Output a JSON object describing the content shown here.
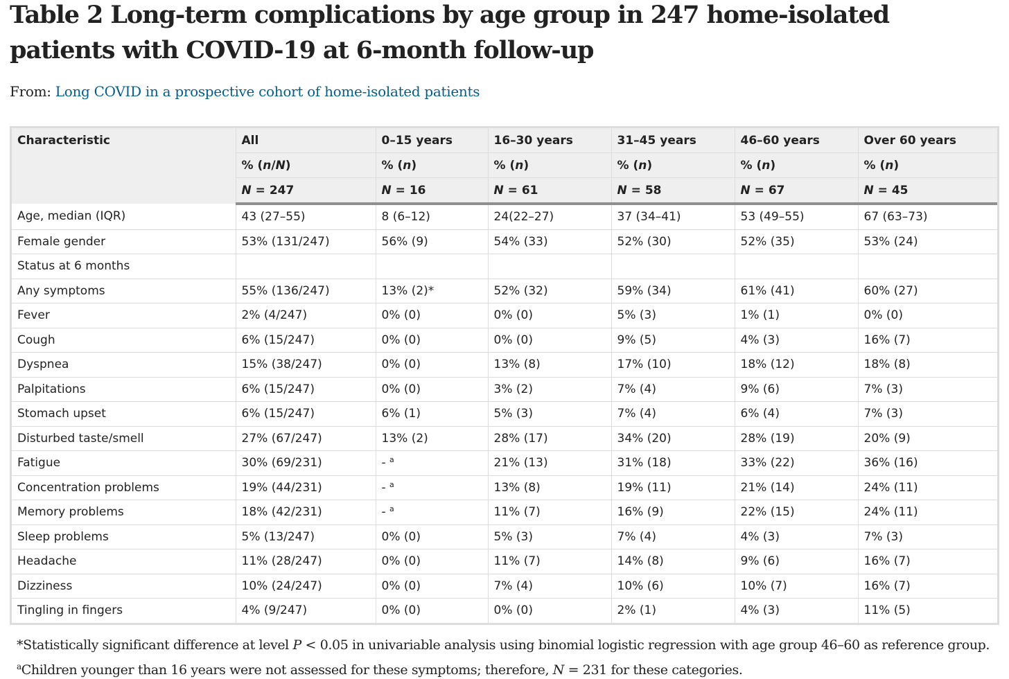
{
  "title": "Table 2 Long-term complications by age group in 247 home-isolated patients with COVID-19 at 6-month follow-up",
  "from_label": "From:",
  "from_link": "Long COVID in a prospective cohort of home-isolated patients",
  "table": {
    "header_row1": [
      "Characteristic",
      "All",
      "0–15 years",
      "16–30 years",
      "31–45 years",
      "46–60 years",
      "Over 60 years"
    ],
    "header_row2": [
      "% (n/N)",
      "% (n)",
      "% (n)",
      "% (n)",
      "% (n)",
      "% (n)"
    ],
    "header_row3": [
      "N = 247",
      "N = 16",
      "N = 61",
      "N = 58",
      "N = 67",
      "N = 45"
    ],
    "rows": [
      [
        "Age, median (IQR)",
        "43 (27–55)",
        "8 (6–12)",
        "24(22–27)",
        "37 (34–41)",
        "53 (49–55)",
        "67 (63–73)"
      ],
      [
        "Female gender",
        "53% (131/247)",
        "56% (9)",
        "54% (33)",
        "52% (30)",
        "52% (35)",
        "53% (24)"
      ],
      [
        "Status at 6 months",
        "",
        "",
        "",
        "",
        "",
        ""
      ],
      [
        "Any symptoms",
        "55% (136/247)",
        "13% (2)*",
        "52% (32)",
        "59% (34)",
        "61% (41)",
        "60% (27)"
      ],
      [
        "Fever",
        "2% (4/247)",
        "0% (0)",
        "0% (0)",
        "5% (3)",
        "1% (1)",
        "0% (0)"
      ],
      [
        "Cough",
        "6% (15/247)",
        "0% (0)",
        "0% (0)",
        "9% (5)",
        "4% (3)",
        "16% (7)"
      ],
      [
        "Dyspnea",
        "15% (38/247)",
        "0% (0)",
        "13% (8)",
        "17% (10)",
        "18% (12)",
        "18% (8)"
      ],
      [
        "Palpitations",
        "6% (15/247)",
        "0% (0)",
        "3% (2)",
        "7% (4)",
        "9% (6)",
        "7% (3)"
      ],
      [
        "Stomach upset",
        "6% (15/247)",
        "6% (1)",
        "5% (3)",
        "7% (4)",
        "6% (4)",
        "7% (3)"
      ],
      [
        "Disturbed taste/smell",
        "27% (67/247)",
        "13% (2)",
        "28% (17)",
        "34% (20)",
        "28% (19)",
        "20% (9)"
      ],
      [
        "Fatigue",
        "30% (69/231)",
        "-",
        "21% (13)",
        "31% (18)",
        "33% (22)",
        "36% (16)"
      ],
      [
        "Concentration problems",
        "19% (44/231)",
        "-",
        "13% (8)",
        "19% (11)",
        "21% (14)",
        "24% (11)"
      ],
      [
        "Memory problems",
        "18% (42/231)",
        "-",
        "11% (7)",
        "16% (9)",
        "22% (15)",
        "24% (11)"
      ],
      [
        "Sleep problems",
        "5% (13/247)",
        "0% (0)",
        "5% (3)",
        "7% (4)",
        "4% (3)",
        "7% (3)"
      ],
      [
        "Headache",
        "11% (28/247)",
        "0% (0)",
        "11% (7)",
        "14% (8)",
        "9% (6)",
        "16% (7)"
      ],
      [
        "Dizziness",
        "10% (24/247)",
        "0% (0)",
        "7% (4)",
        "10% (6)",
        "10% (7)",
        "16% (7)"
      ],
      [
        "Tingling in fingers",
        "4% (9/247)",
        "0% (0)",
        "0% (0)",
        "2% (1)",
        "4% (3)",
        "11% (5)"
      ]
    ],
    "footnote_mark": "a",
    "footnote_mark_rows": [
      10,
      11,
      12
    ]
  },
  "footnotes": {
    "f1_part1": "*Statistically significant difference at level ",
    "f1_var": "P",
    "f1_part2": " < 0.05 in univariable analysis using binomial logistic regression with age group 46–60 as reference group.",
    "f2_mark": "a",
    "f2_part1": "Children younger than 16 years were not assessed for these symptoms; therefore, ",
    "f2_var": "N",
    "f2_part2": " = 231 for these categories."
  },
  "colors": {
    "link": "#025e8d",
    "header_bg": "#efefef",
    "grid": "#dcdcdc",
    "header_rule": "#8f8f8f"
  }
}
